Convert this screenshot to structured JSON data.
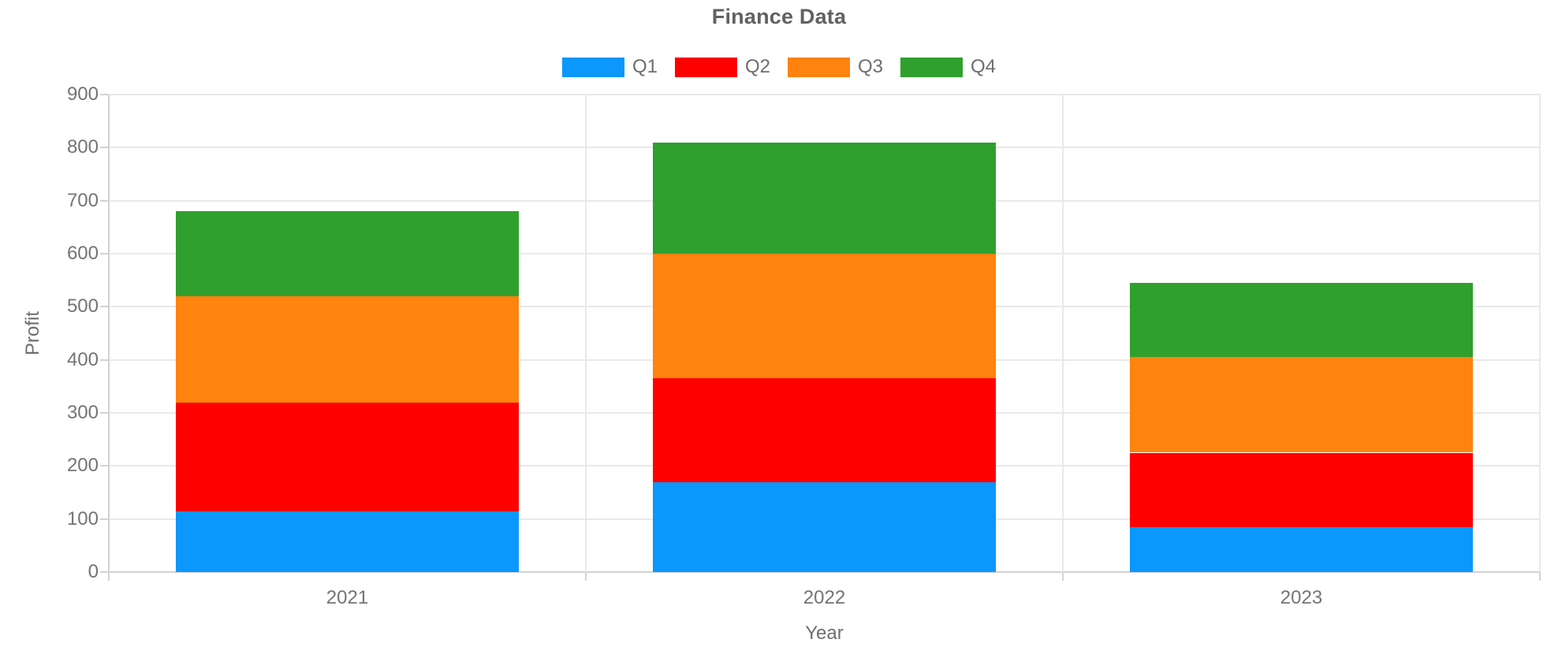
{
  "title": "Finance Data",
  "chart_data": {
    "type": "bar",
    "stacked": true,
    "title": "Finance Data",
    "xlabel": "Year",
    "ylabel": "Profit",
    "categories": [
      "2021",
      "2022",
      "2023"
    ],
    "series": [
      {
        "name": "Q1",
        "color": "#0b97fb",
        "values": [
          115,
          170,
          85
        ]
      },
      {
        "name": "Q2",
        "color": "#ff0000",
        "values": [
          205,
          195,
          140
        ]
      },
      {
        "name": "Q3",
        "color": "#ff830e",
        "values": [
          200,
          235,
          180
        ]
      },
      {
        "name": "Q4",
        "color": "#2fa02d",
        "values": [
          160,
          210,
          140
        ]
      }
    ],
    "stack_totals": [
      680,
      810,
      545
    ],
    "ylim": [
      0,
      900
    ],
    "ytick_step": 100,
    "yticks": [
      "0",
      "100",
      "200",
      "300",
      "400",
      "500",
      "600",
      "700",
      "800",
      "900"
    ],
    "grid": true,
    "legend_position": "top",
    "legend_labels": [
      "Q1",
      "Q2",
      "Q3",
      "Q4"
    ]
  },
  "colors": {
    "gridline": "#e9e9e9",
    "axis": "#d2d2d2",
    "tick_text": "#747474",
    "title_text": "#616161"
  }
}
